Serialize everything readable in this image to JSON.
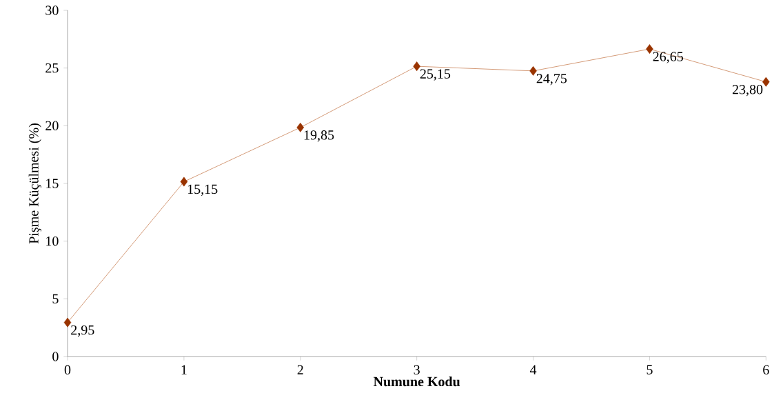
{
  "chart_data": {
    "type": "line",
    "xlabel": "Numune Kodu",
    "ylabel": "Pişme Küçülmesi (%)",
    "x": [
      0,
      1,
      2,
      3,
      4,
      5,
      6
    ],
    "series": [
      {
        "color": "#993300",
        "values": [
          2.95,
          15.15,
          19.85,
          25.15,
          24.75,
          26.65,
          23.8
        ],
        "value_labels": [
          "2,95",
          "15,15",
          "19,85",
          "25,15",
          "24,75",
          "26,65",
          "23,80"
        ]
      }
    ],
    "xlim": [
      0,
      6
    ],
    "xticks": [
      0,
      1,
      2,
      3,
      4,
      5,
      6
    ],
    "ylim": [
      0,
      30
    ],
    "yticks": [
      0,
      5,
      10,
      15,
      20,
      25,
      30
    ],
    "grid": false,
    "marker": "diamond",
    "line_style": "solid"
  }
}
